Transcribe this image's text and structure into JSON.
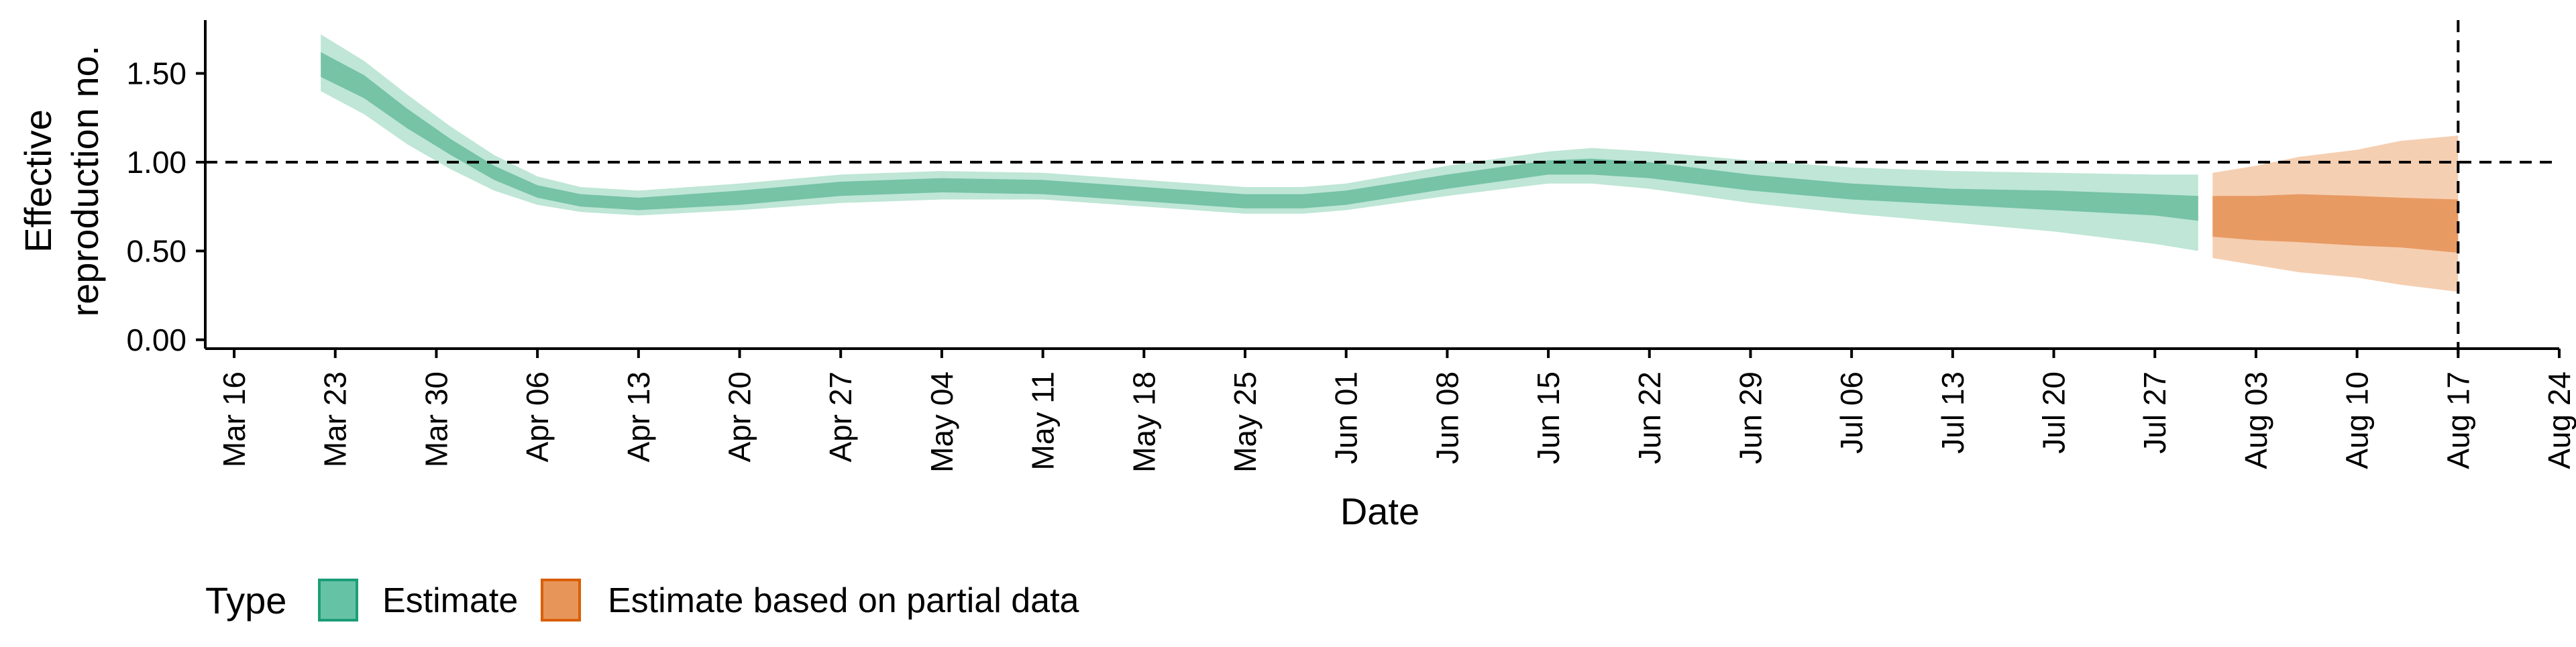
{
  "chart_data": {
    "type": "area",
    "xlabel": "Date",
    "ylabel": "Effective reproduction no.",
    "ylabel_lines": [
      "Effective",
      "reproduction no."
    ],
    "ylim": [
      -0.05,
      1.8
    ],
    "y_ticks": [
      0.0,
      0.5,
      1.0,
      1.5
    ],
    "y_tick_labels": [
      "0.00",
      "0.50",
      "1.00",
      "1.50"
    ],
    "xlim": [
      "2020-03-14",
      "2020-08-24"
    ],
    "x_ticks": [
      "2020-03-16",
      "2020-03-23",
      "2020-03-30",
      "2020-04-06",
      "2020-04-13",
      "2020-04-20",
      "2020-04-27",
      "2020-05-04",
      "2020-05-11",
      "2020-05-18",
      "2020-05-25",
      "2020-06-01",
      "2020-06-08",
      "2020-06-15",
      "2020-06-22",
      "2020-06-29",
      "2020-07-06",
      "2020-07-13",
      "2020-07-20",
      "2020-07-27",
      "2020-08-03",
      "2020-08-10",
      "2020-08-17",
      "2020-08-24"
    ],
    "x_tick_labels": [
      "Mar 16",
      "Mar 23",
      "Mar 30",
      "Apr 06",
      "Apr 13",
      "Apr 20",
      "Apr 27",
      "May 04",
      "May 11",
      "May 18",
      "May 25",
      "Jun 01",
      "Jun 08",
      "Jun 15",
      "Jun 22",
      "Jun 29",
      "Jul 06",
      "Jul 13",
      "Jul 20",
      "Jul 27",
      "Aug 03",
      "Aug 10",
      "Aug 17",
      "Aug 24"
    ],
    "reference_lines": {
      "horizontal_y": 1.0,
      "vertical_x": "2020-08-17",
      "style": "dashed"
    },
    "grid": false,
    "legend": {
      "title": "Type",
      "position": "bottom-left",
      "items": [
        {
          "label": "Estimate",
          "color": "#66c2a5"
        },
        {
          "label": "Estimate based on partial data",
          "color": "#e8955a"
        }
      ]
    },
    "colors": {
      "estimate_inner": "#76c3a6",
      "estimate_outer": "#bfe6d6",
      "partial_inner": "#e89a63",
      "partial_outer": "#f5cfb2",
      "estimate_legend_border": "#1b9e77",
      "partial_legend_border": "#d95f02"
    },
    "series": [
      {
        "name": "Estimate",
        "x": [
          "2020-03-22",
          "2020-03-25",
          "2020-03-28",
          "2020-03-31",
          "2020-04-03",
          "2020-04-06",
          "2020-04-09",
          "2020-04-13",
          "2020-04-20",
          "2020-04-27",
          "2020-05-04",
          "2020-05-11",
          "2020-05-18",
          "2020-05-25",
          "2020-05-29",
          "2020-06-01",
          "2020-06-08",
          "2020-06-15",
          "2020-06-18",
          "2020-06-22",
          "2020-06-29",
          "2020-07-06",
          "2020-07-13",
          "2020-07-20",
          "2020-07-27",
          "2020-07-30"
        ],
        "inner_low": [
          1.48,
          1.36,
          1.19,
          1.04,
          0.9,
          0.8,
          0.75,
          0.73,
          0.76,
          0.81,
          0.83,
          0.82,
          0.78,
          0.74,
          0.74,
          0.76,
          0.85,
          0.93,
          0.93,
          0.91,
          0.84,
          0.79,
          0.76,
          0.73,
          0.7,
          0.67
        ],
        "inner_high": [
          1.62,
          1.49,
          1.3,
          1.13,
          0.98,
          0.87,
          0.82,
          0.8,
          0.84,
          0.89,
          0.91,
          0.9,
          0.86,
          0.82,
          0.82,
          0.84,
          0.93,
          1.01,
          1.02,
          1.0,
          0.93,
          0.88,
          0.85,
          0.84,
          0.82,
          0.81
        ],
        "outer_low": [
          1.4,
          1.27,
          1.1,
          0.96,
          0.84,
          0.76,
          0.72,
          0.7,
          0.73,
          0.77,
          0.79,
          0.79,
          0.75,
          0.71,
          0.71,
          0.73,
          0.81,
          0.88,
          0.88,
          0.85,
          0.77,
          0.71,
          0.66,
          0.61,
          0.54,
          0.5
        ],
        "outer_high": [
          1.72,
          1.57,
          1.38,
          1.2,
          1.04,
          0.92,
          0.86,
          0.84,
          0.88,
          0.93,
          0.95,
          0.94,
          0.9,
          0.86,
          0.86,
          0.88,
          0.98,
          1.06,
          1.08,
          1.06,
          1.01,
          0.97,
          0.95,
          0.94,
          0.93,
          0.93
        ]
      },
      {
        "name": "Estimate based on partial data",
        "x": [
          "2020-07-31",
          "2020-08-03",
          "2020-08-06",
          "2020-08-10",
          "2020-08-13",
          "2020-08-17"
        ],
        "inner_low": [
          0.58,
          0.56,
          0.55,
          0.53,
          0.52,
          0.49
        ],
        "inner_high": [
          0.81,
          0.81,
          0.82,
          0.81,
          0.8,
          0.79
        ],
        "outer_low": [
          0.46,
          0.42,
          0.38,
          0.35,
          0.31,
          0.27
        ],
        "outer_high": [
          0.94,
          0.98,
          1.03,
          1.07,
          1.12,
          1.15
        ]
      }
    ]
  }
}
